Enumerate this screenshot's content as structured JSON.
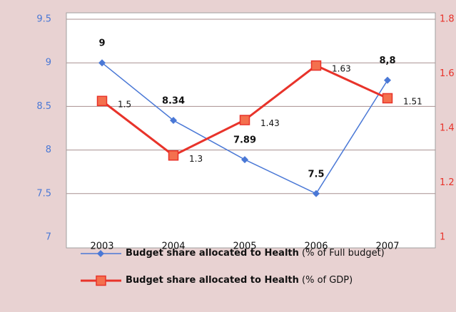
{
  "chart_data": {
    "type": "line",
    "categories": [
      "2003",
      "2004",
      "2005",
      "2006",
      "2007"
    ],
    "series": [
      {
        "name": "Budget share allocated to Health (% of Full budget)",
        "color": "#4a78d6",
        "values": [
          9,
          8.34,
          7.89,
          7.5,
          8.8
        ],
        "value_labels": [
          "9",
          "8.34",
          "7.89",
          "7.5",
          "8,8"
        ]
      },
      {
        "name": "Budget share allocated to Health (% of GDP)",
        "color": "#e8332a",
        "axis": "y2",
        "values": [
          1.5,
          1.3,
          1.43,
          1.63,
          1.51
        ]
      }
    ],
    "ylim": [
      7,
      9.5
    ],
    "yticks": [
      7,
      7.5,
      8,
      8.5,
      9,
      9.5
    ],
    "y2lim": [
      1,
      1.8
    ],
    "y2ticks": [
      1,
      1.2,
      1.4,
      1.6,
      1.8
    ],
    "grid": true
  }
}
